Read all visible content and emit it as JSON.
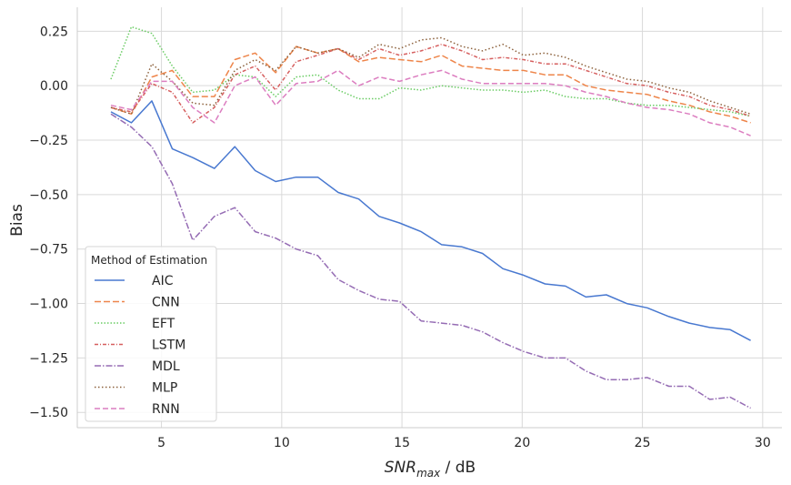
{
  "chart_data": {
    "type": "line",
    "xlabel_main": "SNR",
    "xlabel_sub": "max",
    "xlabel_suffix": " / dB",
    "ylabel": "Bias",
    "xlim": [
      1.5,
      30.8
    ],
    "ylim": [
      -1.57,
      0.36
    ],
    "xticks": [
      5,
      10,
      15,
      20,
      25,
      30
    ],
    "yticks": [
      0.25,
      0.0,
      -0.25,
      -0.5,
      -0.75,
      -1.0,
      -1.25,
      -1.5
    ],
    "ytick_labels": [
      "0.25",
      "0.00",
      "−0.25",
      "−0.50",
      "−0.75",
      "−1.00",
      "−1.25",
      "−1.50"
    ],
    "grid": true,
    "legend": {
      "title": "Method of Estimation",
      "placement": "lower-left"
    },
    "x": [
      2.9,
      3.75,
      4.6,
      5.45,
      6.3,
      7.2,
      8.05,
      8.9,
      9.75,
      10.6,
      11.5,
      12.35,
      13.2,
      14.05,
      14.9,
      15.8,
      16.65,
      17.5,
      18.35,
      19.2,
      20.05,
      20.95,
      21.8,
      22.65,
      23.5,
      24.35,
      25.2,
      26.1,
      26.95,
      27.8,
      28.65,
      29.5
    ],
    "series": [
      {
        "name": "AIC",
        "color": "#4878d0",
        "dash": "",
        "values": [
          -0.12,
          -0.17,
          -0.07,
          -0.29,
          -0.33,
          -0.38,
          -0.28,
          -0.39,
          -0.44,
          -0.42,
          -0.42,
          -0.49,
          -0.52,
          -0.6,
          -0.63,
          -0.67,
          -0.73,
          -0.74,
          -0.77,
          -0.84,
          -0.87,
          -0.91,
          -0.92,
          -0.97,
          -0.96,
          -1.0,
          -1.02,
          -1.06,
          -1.09,
          -1.11,
          -1.12,
          -1.17
        ]
      },
      {
        "name": "CNN",
        "color": "#ee854a",
        "dash": "7,3",
        "values": [
          -0.1,
          -0.13,
          0.04,
          0.07,
          -0.05,
          -0.05,
          0.12,
          0.15,
          0.06,
          0.18,
          0.15,
          0.17,
          0.11,
          0.13,
          0.12,
          0.11,
          0.14,
          0.09,
          0.08,
          0.07,
          0.07,
          0.05,
          0.05,
          0.0,
          -0.02,
          -0.03,
          -0.04,
          -0.07,
          -0.09,
          -0.12,
          -0.14,
          -0.17
        ]
      },
      {
        "name": "EFT",
        "color": "#6acc64",
        "dash": "1.5,2",
        "values": [
          0.03,
          0.27,
          0.24,
          0.09,
          -0.03,
          -0.02,
          0.05,
          0.04,
          -0.05,
          0.04,
          0.05,
          -0.02,
          -0.06,
          -0.06,
          -0.01,
          -0.02,
          0.0,
          -0.01,
          -0.02,
          -0.02,
          -0.03,
          -0.02,
          -0.05,
          -0.06,
          -0.06,
          -0.08,
          -0.09,
          -0.09,
          -0.1,
          -0.11,
          -0.12,
          -0.14
        ]
      },
      {
        "name": "LSTM",
        "color": "#d65f5f",
        "dash": "4,2,1,2",
        "values": [
          -0.1,
          -0.12,
          0.01,
          -0.03,
          -0.17,
          -0.1,
          0.05,
          0.09,
          -0.02,
          0.11,
          0.14,
          0.17,
          0.12,
          0.17,
          0.14,
          0.16,
          0.19,
          0.16,
          0.12,
          0.13,
          0.12,
          0.1,
          0.1,
          0.07,
          0.04,
          0.01,
          0.0,
          -0.03,
          -0.05,
          -0.09,
          -0.11,
          -0.14
        ]
      },
      {
        "name": "MDL",
        "color": "#956cb4",
        "dash": "7,2,1.5,2",
        "values": [
          -0.13,
          -0.19,
          -0.28,
          -0.45,
          -0.71,
          -0.6,
          -0.56,
          -0.67,
          -0.7,
          -0.75,
          -0.78,
          -0.89,
          -0.94,
          -0.98,
          -0.99,
          -1.08,
          -1.09,
          -1.1,
          -1.13,
          -1.18,
          -1.22,
          -1.25,
          -1.25,
          -1.31,
          -1.35,
          -1.35,
          -1.34,
          -1.38,
          -1.38,
          -1.44,
          -1.43,
          -1.48
        ]
      },
      {
        "name": "MLP",
        "color": "#8c613c",
        "dash": "1.5,2.5",
        "values": [
          -0.1,
          -0.13,
          0.1,
          0.02,
          -0.08,
          -0.09,
          0.07,
          0.12,
          0.07,
          0.18,
          0.15,
          0.17,
          0.13,
          0.19,
          0.17,
          0.21,
          0.22,
          0.18,
          0.16,
          0.19,
          0.14,
          0.15,
          0.13,
          0.09,
          0.06,
          0.03,
          0.02,
          -0.01,
          -0.03,
          -0.07,
          -0.1,
          -0.13
        ]
      },
      {
        "name": "RNN",
        "color": "#dc7ec0",
        "dash": "6,3",
        "values": [
          -0.09,
          -0.11,
          0.02,
          0.02,
          -0.1,
          -0.17,
          0.0,
          0.04,
          -0.09,
          0.01,
          0.02,
          0.07,
          0.0,
          0.04,
          0.02,
          0.05,
          0.07,
          0.03,
          0.01,
          0.01,
          0.01,
          0.01,
          0.0,
          -0.03,
          -0.05,
          -0.08,
          -0.1,
          -0.11,
          -0.13,
          -0.17,
          -0.19,
          -0.23
        ]
      }
    ]
  }
}
